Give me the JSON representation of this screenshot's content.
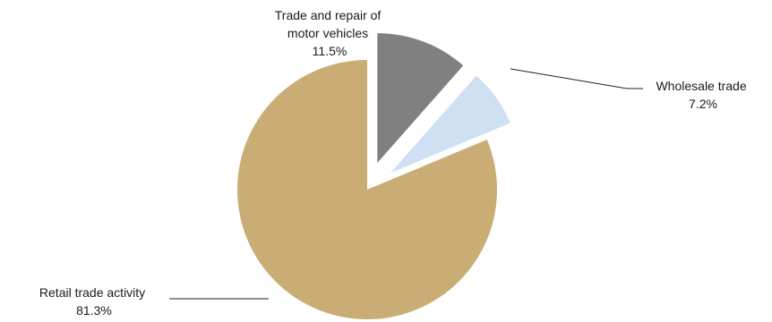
{
  "chart_data": {
    "type": "pie",
    "title": "",
    "slices": [
      {
        "label_lines": [
          "Trade and repair of",
          "motor vehicles"
        ],
        "value_label": "11.5%",
        "value": 11.5,
        "color": "#808080",
        "exploded": true
      },
      {
        "label_lines": [
          "Wholesale trade"
        ],
        "value_label": "7.2%",
        "value": 7.2,
        "color": "#cfe0f3",
        "exploded": true
      },
      {
        "label_lines": [
          "Retail trade activity"
        ],
        "value_label": "81.3%",
        "value": 81.3,
        "color": "#c9ad74",
        "exploded": false
      }
    ],
    "start_angle_deg": 0,
    "direction": "clockwise",
    "legend": "none"
  }
}
